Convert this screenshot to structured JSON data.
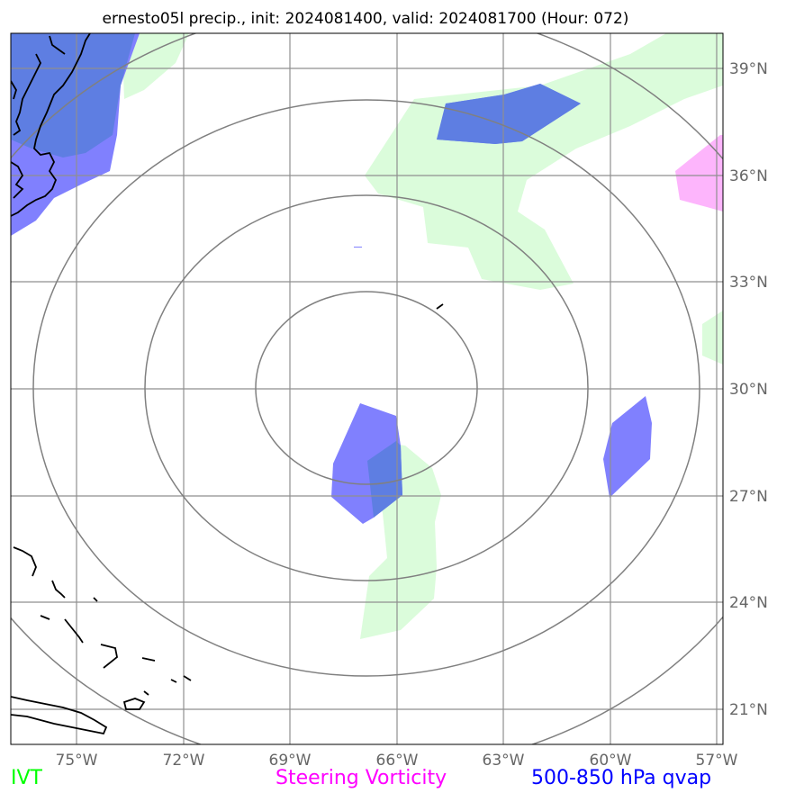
{
  "title": "ernesto05l precip., init: 2024081400, valid: 2024081700 (Hour: 072)",
  "lat_labels": [
    "39°N",
    "36°N",
    "33°N",
    "30°N",
    "27°N",
    "24°N",
    "21°N"
  ],
  "lon_labels": [
    "75°W",
    "72°W",
    "69°W",
    "66°W",
    "63°W",
    "60°W",
    "57°W"
  ],
  "legend": {
    "ivt": "IVT",
    "vorticity": "Steering Vorticity",
    "qvap": "500-850 hPa qvap"
  },
  "colors": {
    "ivt": "#00ff00",
    "vorticity": "#ff00ff",
    "qvap": "#0000ff",
    "ivt_fill": "#dbfcdb",
    "vort_fill": "#fdb5fc",
    "qvap_fill": "#8080fe",
    "overlap_fill": "#5e7ee2"
  }
}
